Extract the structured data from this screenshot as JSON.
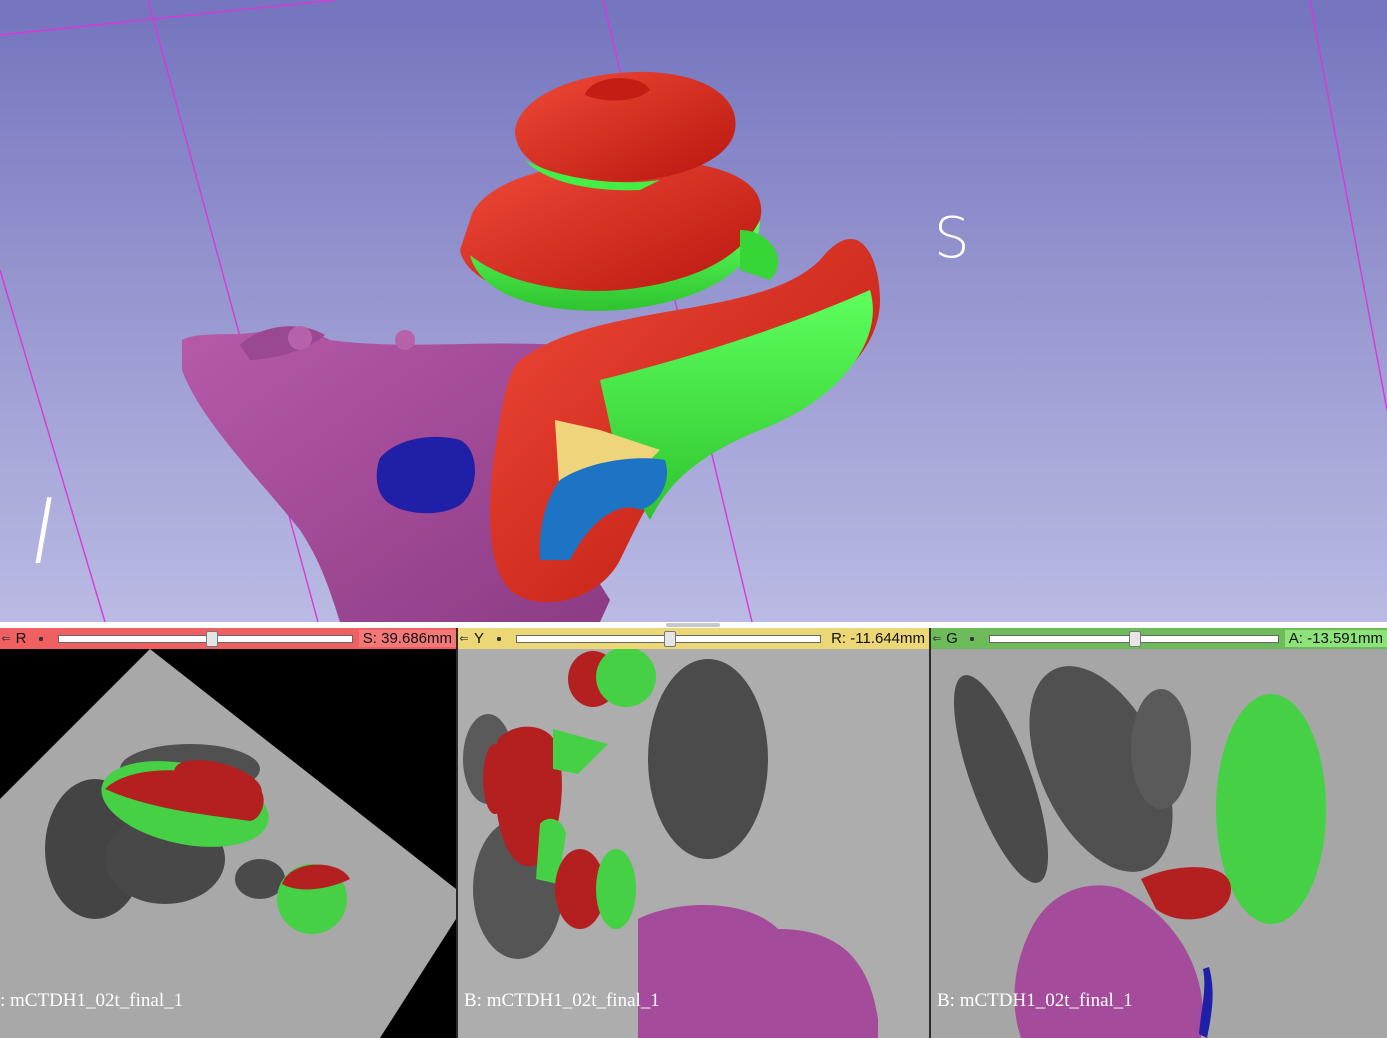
{
  "view3d": {
    "orientation_labels": {
      "superior": "S",
      "inferior": "I"
    }
  },
  "slice_views": [
    {
      "name": "R",
      "color": "#f06060",
      "slider_fraction": 0.52,
      "offset": "S: 39.686mm",
      "background_label": ": mCTDH1_02t_final_1"
    },
    {
      "name": "Y",
      "color": "#ecd777",
      "slider_fraction": 0.5,
      "offset": "R: -11.644mm",
      "background_label": "B: mCTDH1_02t_final_1"
    },
    {
      "name": "G",
      "color": "#6dbb5b",
      "slider_fraction": 0.5,
      "offset": "A: -13.591mm",
      "background_label": "B: mCTDH1_02t_final_1"
    }
  ],
  "segment_colors": {
    "scala_vestibuli": "#e8281e",
    "scala_tympani": "#44ee44",
    "vestibule": "#a44b9c",
    "round_window": "#1f1fa8",
    "saccule": "#eed47a",
    "utricle": "#1e74c4"
  }
}
